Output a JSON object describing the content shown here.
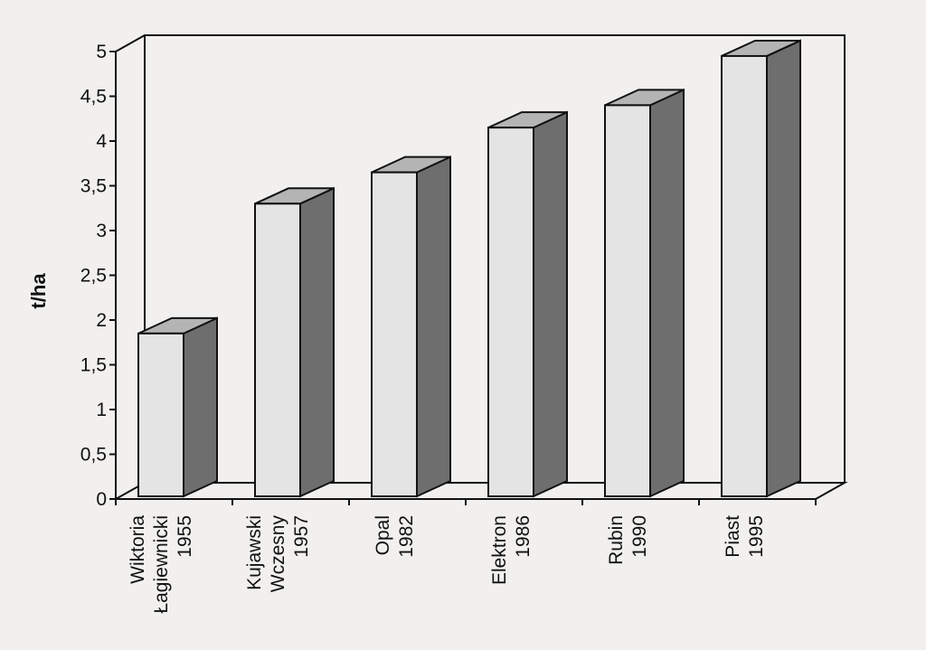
{
  "chart_data": {
    "type": "bar",
    "style": "3d-column",
    "categories": [
      [
        "Wiktoria",
        "Łagiewnicki",
        "1955"
      ],
      [
        "Kujawski",
        "Wczesny",
        "1957"
      ],
      [
        "Opal",
        "1982"
      ],
      [
        "Elektron",
        "1986"
      ],
      [
        "Rubin",
        "1990"
      ],
      [
        "Piast",
        "1995"
      ]
    ],
    "values": [
      1.85,
      3.3,
      3.65,
      4.15,
      4.4,
      4.95
    ],
    "ylabel": "t/ha",
    "ylim": [
      0,
      5
    ],
    "yticks": [
      "0",
      "0,5",
      "1",
      "1,5",
      "2",
      "2,5",
      "3",
      "3,5",
      "4",
      "4,5",
      "5"
    ],
    "grid": false,
    "colors": {
      "bar_front": "#e4e4e4",
      "bar_top": "#b4b4b4",
      "bar_side": "#6e6e6e",
      "line": "#111111",
      "background": "#f1f0ee"
    }
  }
}
